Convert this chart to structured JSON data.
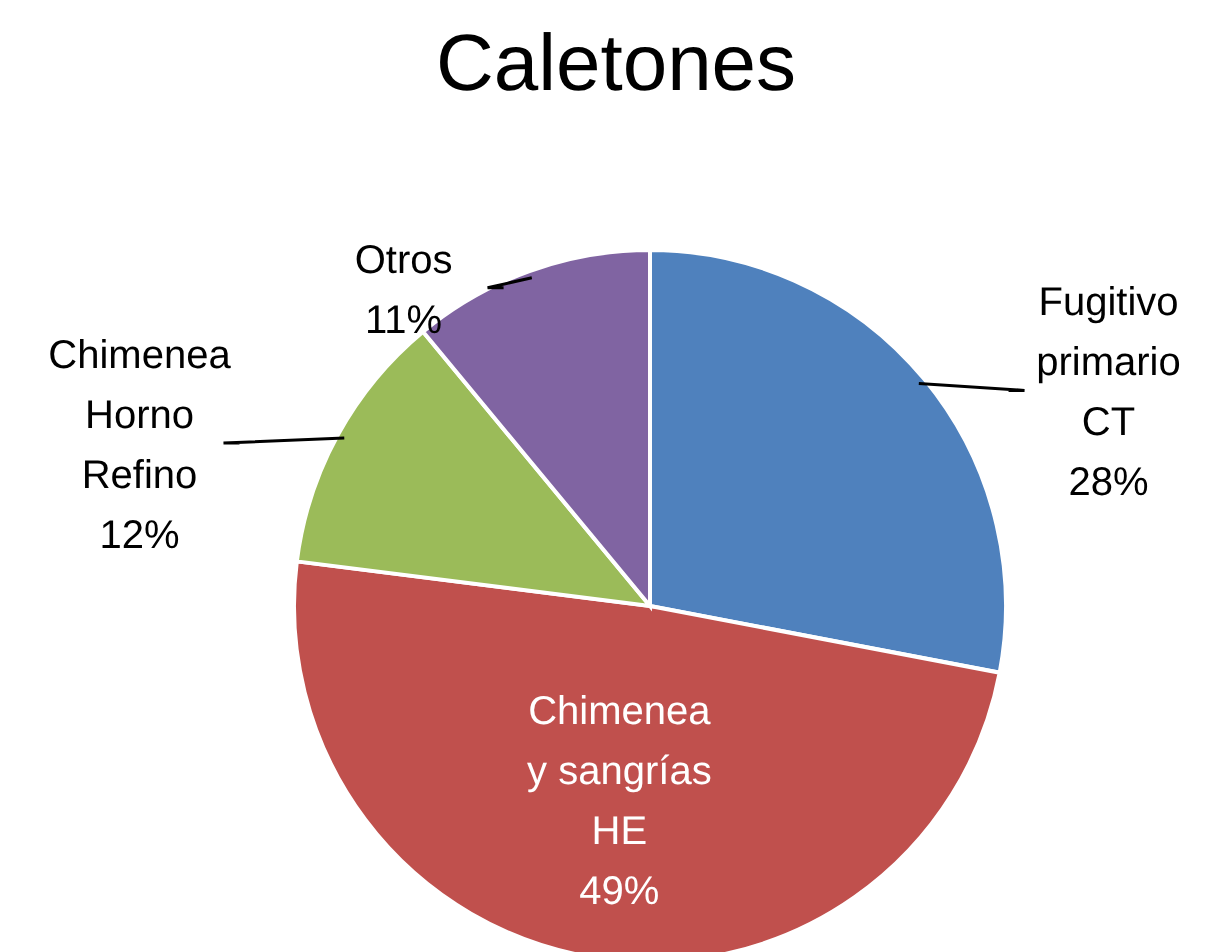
{
  "chart_data": {
    "type": "pie",
    "title": "Caletones",
    "categories": [
      "Fugitivo primario CT",
      "Chimenea y sangrías HE",
      "Chimenea Horno Refino",
      "Otros"
    ],
    "values": [
      28,
      49,
      12,
      11
    ],
    "colors": [
      "#4f81bd",
      "#c0504d",
      "#9bbb59",
      "#8064a2"
    ],
    "value_labels": [
      "28%",
      "49%",
      "12%",
      "11%"
    ],
    "legend": false
  }
}
